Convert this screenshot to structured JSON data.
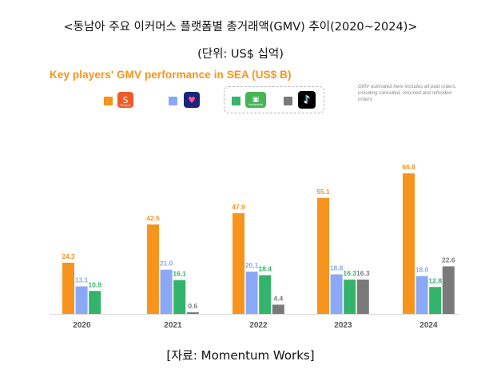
{
  "header": {
    "title": "<동남아 주요 이커머스 플랫폼별 총거래액(GMV) 추이(2020~2024)>",
    "unit": "(단위: US$ 십억)"
  },
  "source": "[자료: Momentum Works]",
  "chart_data": {
    "type": "bar",
    "title": "Key players' GMV performance in SEA (US$ B)",
    "note": "GMV estimated here includes all paid orders, including cancelled, returned and refunded orders.",
    "xlabel": "",
    "ylabel": "",
    "categories": [
      "2020",
      "2021",
      "2022",
      "2023",
      "2024"
    ],
    "series": [
      {
        "logo": "Shopee",
        "color": "#f7941d",
        "values": [
          24.3,
          42.5,
          47.9,
          55.1,
          66.8
        ],
        "labels": [
          "24.3",
          "42.5",
          "47.9",
          "55.1",
          "66.8"
        ]
      },
      {
        "logo": "Lazada",
        "color": "#8aa8f5",
        "values": [
          13.1,
          21.0,
          20.1,
          18.8,
          18.0
        ],
        "labels": [
          "13.1",
          "21.0",
          "20.1",
          "18.8",
          "18.0"
        ]
      },
      {
        "logo": "tokopedia",
        "color": "#33b36b",
        "values": [
          10.9,
          16.1,
          18.4,
          16.3,
          12.8
        ],
        "labels": [
          "10.9",
          "16.1",
          "18.4",
          "16.3",
          "12.8"
        ]
      },
      {
        "logo": "TikTok",
        "color": "#7a7a7a",
        "values": [
          null,
          0.6,
          4.4,
          16.3,
          22.6
        ],
        "labels": [
          "",
          "0.6",
          "4.4",
          "16.3",
          "22.6"
        ]
      }
    ],
    "ylim": [
      0,
      66.8
    ],
    "grid": false,
    "legend_position": "top"
  }
}
